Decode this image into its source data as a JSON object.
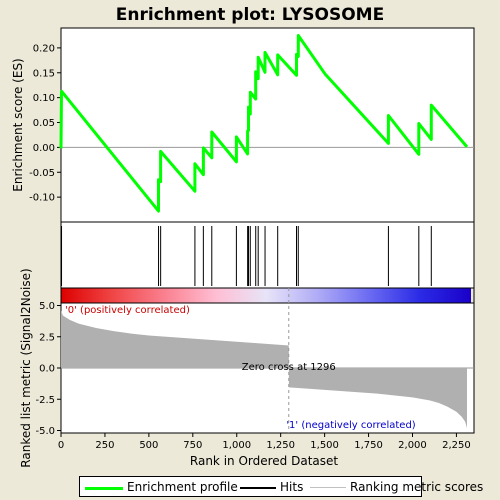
{
  "chart_data": {
    "type": "line",
    "title": "Enrichment plot: LYSOSOME",
    "es_panel": {
      "ylabel": "Enrichment score (ES)",
      "xlim": [
        0,
        2350
      ],
      "ylim": [
        -0.15,
        0.24
      ],
      "yticks": [
        -0.1,
        -0.05,
        0.0,
        0.05,
        0.1,
        0.15,
        0.2
      ],
      "ytick_labels": [
        "-0.10",
        "-0.05",
        "0.00",
        "0.05",
        "0.10",
        "0.15",
        "0.20"
      ],
      "line_color": "#00ff00",
      "series": [
        {
          "x": [
            0,
            3,
            3,
            555,
            555,
            567,
            567,
            762,
            762,
            810,
            810,
            858,
            858,
            998,
            998,
            1062,
            1062,
            1067,
            1067,
            1077,
            1077,
            1108,
            1108,
            1122,
            1122,
            1161,
            1161,
            1233,
            1233,
            1340,
            1340,
            1350,
            1350,
            1504,
            1863,
            1863,
            2036,
            2036,
            2107,
            2107,
            2310
          ],
          "y": [
            -0.002,
            0.113,
            0.113,
            -0.128,
            -0.065,
            -0.069,
            -0.008,
            -0.088,
            -0.033,
            -0.055,
            -0.001,
            -0.021,
            0.031,
            -0.029,
            0.021,
            -0.013,
            0.033,
            0.034,
            0.081,
            0.067,
            0.111,
            0.097,
            0.152,
            0.138,
            0.181,
            0.151,
            0.191,
            0.146,
            0.186,
            0.145,
            0.187,
            0.183,
            0.225,
            0.147,
            0.008,
            0.064,
            -0.014,
            0.048,
            0.016,
            0.085,
            0.001
          ]
        }
      ]
    },
    "hits_panel": {
      "positions": [
        3,
        555,
        567,
        762,
        810,
        858,
        998,
        1062,
        1067,
        1077,
        1108,
        1122,
        1161,
        1233,
        1340,
        1350,
        1863,
        2036,
        2107
      ]
    },
    "heatmap_bar": {
      "colors_left_to_right": [
        "#dd0000",
        "#f04545",
        "#fa7f8e",
        "#ffbdd2",
        "#e8e4f8",
        "#b0acf6",
        "#6c6cf2",
        "#2b2be6",
        "#1a00c8"
      ]
    },
    "metric_panel": {
      "ylabel": "Ranked list metric (Signal2Noise)",
      "xlabel": "Rank in Ordered Dataset",
      "xlim": [
        0,
        2350
      ],
      "ylim": [
        -5.2,
        5.2
      ],
      "xticks": [
        0,
        250,
        500,
        750,
        1000,
        1250,
        1500,
        1750,
        2000,
        2250
      ],
      "xtick_labels": [
        "0",
        "250",
        "500",
        "750",
        "1,000",
        "1,250",
        "1,500",
        "1,750",
        "2,000",
        "2,250"
      ],
      "yticks": [
        -5,
        -2.5,
        0,
        2.5,
        5
      ],
      "ytick_labels": [
        "-5.0",
        "-2.5",
        "0.0",
        "2.5",
        "5.0"
      ],
      "fill_color": "#b0b0b0",
      "zero_cross": 1296,
      "zero_cross_label": "Zero cross at 1296",
      "positive_label": "'0' (positively correlated)",
      "negative_label": "'1' (negatively correlated)",
      "profile_x": [
        0,
        10,
        50,
        100,
        200,
        300,
        400,
        500,
        600,
        700,
        800,
        900,
        1000,
        1100,
        1200,
        1296,
        1297,
        1400,
        1500,
        1600,
        1700,
        1800,
        1900,
        2000,
        2100,
        2150,
        2200,
        2250,
        2280,
        2300,
        2310
      ],
      "profile_y": [
        4.6,
        4.2,
        3.85,
        3.55,
        3.2,
        2.95,
        2.75,
        2.6,
        2.5,
        2.4,
        2.3,
        2.2,
        2.1,
        2.0,
        1.9,
        1.8,
        -1.55,
        -1.65,
        -1.75,
        -1.85,
        -1.95,
        -2.05,
        -2.2,
        -2.35,
        -2.6,
        -2.8,
        -3.1,
        -3.5,
        -3.9,
        -4.3,
        -4.8
      ]
    },
    "legend": {
      "items": [
        {
          "label": "Enrichment profile",
          "color": "#00ff00"
        },
        {
          "label": "Hits",
          "color": "#000000"
        },
        {
          "label": "Ranking metric scores",
          "color": "#c0c0c0"
        }
      ]
    }
  }
}
